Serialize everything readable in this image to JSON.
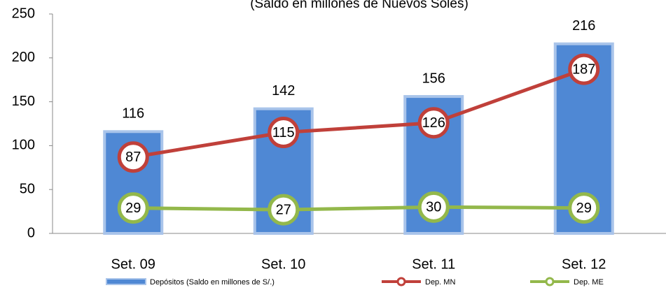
{
  "chart_data": {
    "type": "bar",
    "subtitle": "(Saldo en millones de Nuevos Soles)",
    "categories": [
      "Set. 09",
      "Set. 10",
      "Set. 11",
      "Set. 12"
    ],
    "series": [
      {
        "name": "Depósitos (Saldo en millones de S/.)",
        "color": "#4f88d4",
        "type": "bar",
        "values": [
          116,
          142,
          156,
          216
        ]
      },
      {
        "name": "Dep. MN",
        "color": "#c0403a",
        "type": "line",
        "values": [
          87,
          115,
          126,
          187
        ]
      },
      {
        "name": "Dep. ME",
        "color": "#93b84b",
        "type": "line",
        "values": [
          29,
          27,
          30,
          29
        ]
      }
    ],
    "ylim": [
      0,
      250
    ],
    "yticks": [
      0,
      50,
      100,
      150,
      200,
      250
    ],
    "grid": false,
    "legend": "bottom"
  }
}
